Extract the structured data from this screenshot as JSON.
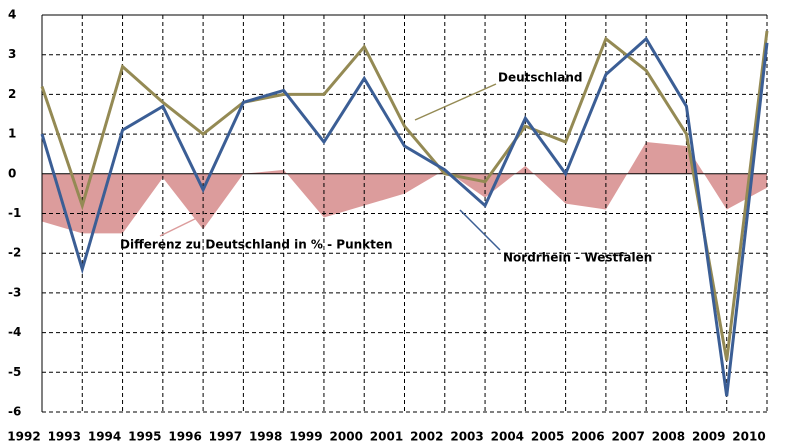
{
  "chart_data": {
    "type": "line",
    "categories": [
      "1992",
      "1993",
      "1994",
      "1995",
      "1996",
      "1997",
      "1998",
      "1999",
      "2000",
      "2001",
      "2002",
      "2003",
      "2004",
      "2005",
      "2006",
      "2007",
      "2008",
      "2009",
      "2010"
    ],
    "series": [
      {
        "name": "Differenz zu Deutschland in % - Punkten",
        "kind": "area",
        "color": "#dc9c9c",
        "values": [
          -1.2,
          -1.5,
          -1.5,
          -0.1,
          -1.4,
          0.0,
          0.1,
          -1.1,
          -0.8,
          -0.5,
          0.1,
          -0.6,
          0.2,
          -0.75,
          -0.9,
          0.8,
          0.7,
          -0.9,
          -0.35
        ]
      },
      {
        "name": "Deutschland",
        "kind": "line",
        "color": "#948a54",
        "values": [
          2.2,
          -0.8,
          2.7,
          1.8,
          1.0,
          1.8,
          2.0,
          2.0,
          3.2,
          1.2,
          0.0,
          -0.2,
          1.2,
          0.8,
          3.4,
          2.6,
          1.0,
          -4.7,
          3.6
        ]
      },
      {
        "name": "Nordrhein - Westfalen",
        "kind": "line",
        "color": "#3b5e95",
        "values": [
          1.0,
          -2.4,
          1.1,
          1.7,
          -0.4,
          1.8,
          2.1,
          0.8,
          2.4,
          0.7,
          0.1,
          -0.8,
          1.4,
          0.0,
          2.5,
          3.4,
          1.7,
          -5.6,
          3.3
        ]
      }
    ],
    "ylim": [
      -6,
      4
    ],
    "yticks": [
      -6,
      -5,
      -4,
      -3,
      -2,
      -1,
      0,
      1,
      2,
      3,
      4
    ],
    "grid": true
  }
}
